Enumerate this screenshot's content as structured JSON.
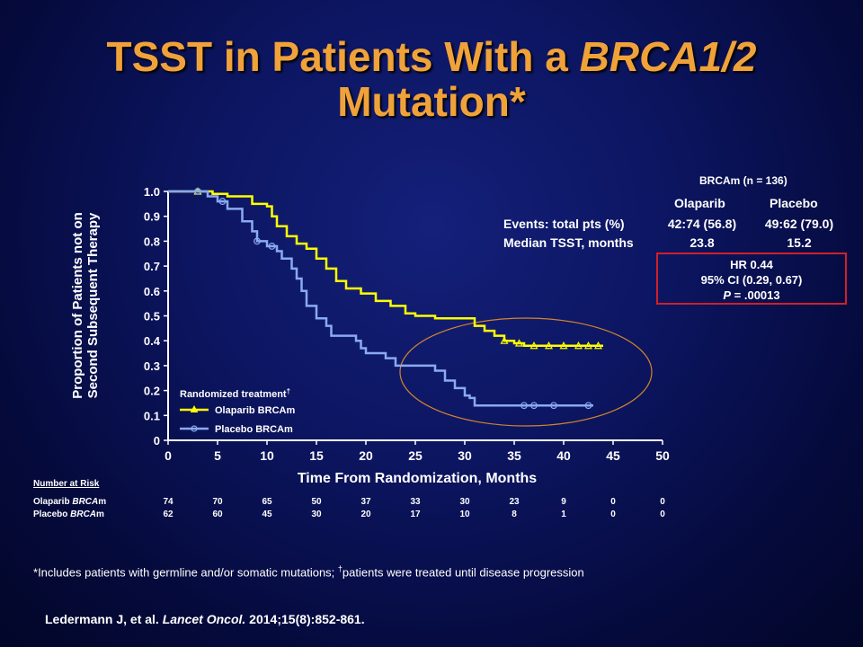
{
  "title_part1": "TSST in Patients With a ",
  "title_italic": "BRCA1/2",
  "title_part2": "Mutation*",
  "chart_data": {
    "type": "line",
    "title": "",
    "xlabel": "Time From Randomization, Months",
    "ylabel_line1": "Proportion of Patients not on",
    "ylabel_line2": "Second Subsequent Therapy",
    "xlim": [
      0,
      50
    ],
    "ylim": [
      0,
      1.0
    ],
    "x_ticks": [
      "0",
      "5",
      "10",
      "15",
      "20",
      "25",
      "30",
      "35",
      "40",
      "45",
      "50"
    ],
    "y_ticks": [
      "0",
      "0.1",
      "0.2",
      "0.3",
      "0.4",
      "0.5",
      "0.6",
      "0.7",
      "0.8",
      "0.9",
      "1.0"
    ],
    "legend_title": "Randomized treatment",
    "legend_title_sup": "†",
    "series": [
      {
        "name": "Olaparib BRCAm",
        "color": "#ffff00",
        "marker": "triangle",
        "points": [
          [
            0,
            1.0
          ],
          [
            3.5,
            1.0
          ],
          [
            4.5,
            0.99
          ],
          [
            6,
            0.98
          ],
          [
            8.5,
            0.95
          ],
          [
            10,
            0.94
          ],
          [
            10.5,
            0.9
          ],
          [
            11,
            0.86
          ],
          [
            12,
            0.82
          ],
          [
            13,
            0.79
          ],
          [
            14,
            0.77
          ],
          [
            15,
            0.73
          ],
          [
            16,
            0.69
          ],
          [
            17,
            0.64
          ],
          [
            18,
            0.61
          ],
          [
            19.5,
            0.59
          ],
          [
            21,
            0.56
          ],
          [
            22.5,
            0.54
          ],
          [
            24,
            0.51
          ],
          [
            25,
            0.5
          ],
          [
            27,
            0.49
          ],
          [
            30,
            0.49
          ],
          [
            31,
            0.46
          ],
          [
            32,
            0.44
          ],
          [
            33,
            0.42
          ],
          [
            34,
            0.4
          ],
          [
            35,
            0.39
          ],
          [
            36,
            0.38
          ],
          [
            44,
            0.38
          ]
        ],
        "censor_x": [
          3,
          34,
          35.5,
          37,
          38.5,
          40,
          41.5,
          42.5,
          43.5
        ]
      },
      {
        "name": "Placebo BRCAm",
        "color": "#8aaaf2",
        "marker": "circle",
        "points": [
          [
            0,
            1.0
          ],
          [
            3,
            1.0
          ],
          [
            4,
            0.98
          ],
          [
            5,
            0.96
          ],
          [
            6,
            0.93
          ],
          [
            7.5,
            0.88
          ],
          [
            8.5,
            0.84
          ],
          [
            9,
            0.8
          ],
          [
            10,
            0.78
          ],
          [
            11,
            0.76
          ],
          [
            11.5,
            0.73
          ],
          [
            12.5,
            0.69
          ],
          [
            13,
            0.65
          ],
          [
            13.5,
            0.6
          ],
          [
            14,
            0.54
          ],
          [
            15,
            0.49
          ],
          [
            16,
            0.46
          ],
          [
            16.5,
            0.42
          ],
          [
            19,
            0.4
          ],
          [
            19.5,
            0.37
          ],
          [
            20,
            0.35
          ],
          [
            22,
            0.33
          ],
          [
            23,
            0.3
          ],
          [
            25.5,
            0.3
          ],
          [
            27,
            0.28
          ],
          [
            28,
            0.24
          ],
          [
            29,
            0.21
          ],
          [
            30,
            0.18
          ],
          [
            30.5,
            0.17
          ],
          [
            31,
            0.14
          ],
          [
            43,
            0.14
          ]
        ],
        "censor_x": [
          3,
          5.5,
          9,
          10.5,
          36,
          37,
          39,
          42.5
        ]
      }
    ]
  },
  "summary_table": {
    "heading": "BRCAm  (n = 136)",
    "col_olaparib": "Olaparib",
    "col_placebo": "Placebo",
    "events_label": "Events: total pts (%)",
    "events_olaparib": "42:74 (56.8)",
    "events_placebo": "49:62 (79.0)",
    "median_label": "Median TSST, months",
    "median_olaparib": "23.8",
    "median_placebo": "15.2",
    "hr": "HR 0.44",
    "ci": "95% CI (0.29, 0.67)",
    "p_label": "P",
    "p_value": " = .00013"
  },
  "risk": {
    "header": "Number at Risk",
    "olaparib_label_1": "Olaparib ",
    "olaparib_label_2": "BRCA",
    "olaparib_label_3": "m",
    "placebo_label_1": "Placebo ",
    "placebo_label_2": "BRCA",
    "placebo_label_3": "m",
    "olaparib": [
      "74",
      "70",
      "65",
      "50",
      "37",
      "33",
      "30",
      "23",
      "9",
      "0",
      "0"
    ],
    "placebo": [
      "62",
      "60",
      "45",
      "30",
      "20",
      "17",
      "10",
      "8",
      "1",
      "0",
      "0"
    ]
  },
  "footnote_star": "*",
  "footnote_1": "Includes  patients with germline and/or somatic mutations; ",
  "footnote_dagger": "†",
  "footnote_2": "patients were treated until disease progression",
  "reference_1": "Ledermann J, et al. ",
  "reference_italic": "Lancet Oncol.",
  "reference_2": " 2014;15(8):852-861."
}
